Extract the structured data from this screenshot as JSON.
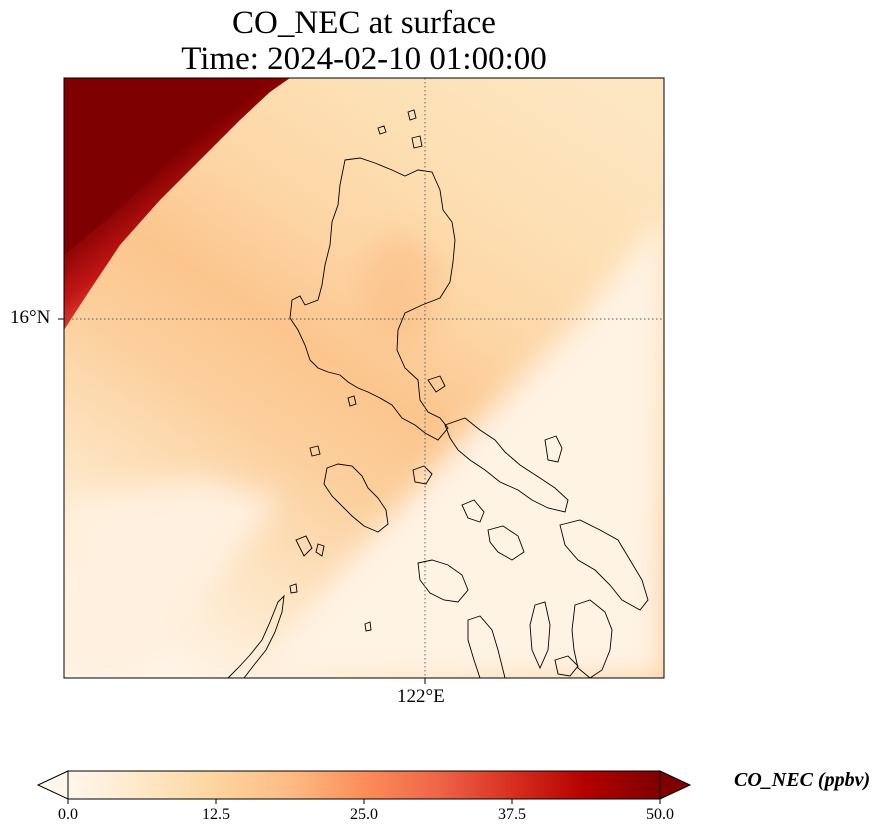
{
  "title": {
    "line1": "CO_NEC at surface",
    "line2": "Time: 2024-02-10 01:00:00"
  },
  "map": {
    "lat_label": "16°N",
    "lon_label": "122°E",
    "coastline_color": "#000000",
    "gridline_style": "dotted"
  },
  "colorbar": {
    "label": "CO_NEC (ppbv)",
    "colormap": "OrRd",
    "min": 0.0,
    "max": 50.0,
    "ticks": [
      "0.0",
      "12.5",
      "25.0",
      "37.5",
      "50.0"
    ],
    "tick_values": [
      0.0,
      12.5,
      25.0,
      37.5,
      50.0
    ],
    "extend": "both",
    "colors": [
      "#fff7ec",
      "#fee8c8",
      "#fdd49e",
      "#fdbb84",
      "#fc8d59",
      "#ef6548",
      "#d7301f",
      "#b30000",
      "#7f0000"
    ]
  }
}
